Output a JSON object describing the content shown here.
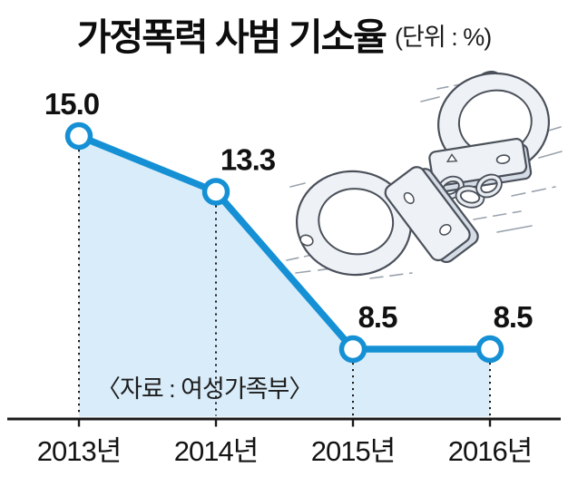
{
  "title": {
    "text": "가정폭력 사범 기소율",
    "unit": "(단위 : %)"
  },
  "chart_data": {
    "type": "area",
    "title": "가정폭력 사범 기소율",
    "unit_label": "(단위 : %)",
    "categories": [
      "2013년",
      "2014년",
      "2015년",
      "2016년"
    ],
    "values": [
      15.0,
      13.3,
      8.5,
      8.5
    ],
    "value_labels": [
      "15.0",
      "13.3",
      "8.5",
      "8.5"
    ],
    "source": "〈자료 : 여성가족부〉",
    "xlabel": "",
    "ylabel": "",
    "ylim": [
      6.1,
      15.0
    ],
    "grid": false,
    "legend": "none",
    "line_color": "#1590d5",
    "fill_color": "#d9ecf9",
    "axis_color": "#1a1a1a",
    "point_fill": "#ffffff"
  },
  "illustration": {
    "name": "handcuffs"
  }
}
